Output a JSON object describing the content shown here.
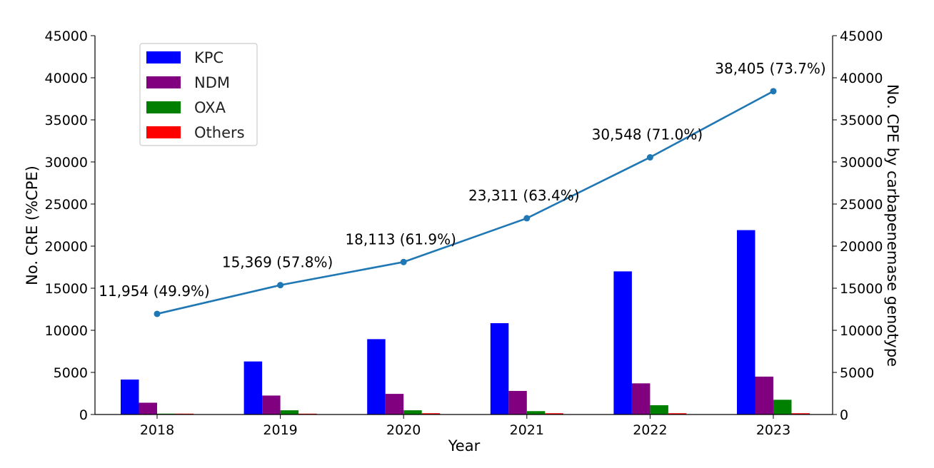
{
  "chart_data": {
    "type": "bar",
    "categories": [
      "2018",
      "2019",
      "2020",
      "2021",
      "2022",
      "2023"
    ],
    "xlabel": "Year",
    "ylabel": "No. CRE (%CPE)",
    "y2label": "No. CPE by carbapenemase genotype",
    "ylim": [
      0,
      45000
    ],
    "y2lim": [
      0,
      45000
    ],
    "yticks": [
      0,
      5000,
      10000,
      15000,
      20000,
      25000,
      30000,
      35000,
      40000,
      45000
    ],
    "legend_position": "top-left",
    "grid": false,
    "series": [
      {
        "name": "KPC",
        "color": "#0000ff",
        "values": [
          4150,
          6300,
          8950,
          10850,
          17000,
          21900
        ]
      },
      {
        "name": "NDM",
        "color": "#800080",
        "values": [
          1400,
          2250,
          2450,
          2800,
          3700,
          4500
        ]
      },
      {
        "name": "OXA",
        "color": "#008000",
        "values": [
          100,
          500,
          500,
          400,
          1100,
          1750
        ]
      },
      {
        "name": "Others",
        "color": "#ff0000",
        "values": [
          100,
          100,
          150,
          150,
          150,
          150
        ]
      }
    ],
    "line": {
      "color": "#1f77b4",
      "values": [
        11954,
        15369,
        18113,
        23311,
        30548,
        38405
      ],
      "labels": [
        "11,954 (49.9%)",
        "15,369 (57.8%)",
        "18,113 (61.9%)",
        "23,311 (63.4%)",
        "30,548 (71.0%)",
        "38,405 (73.7%)"
      ]
    }
  }
}
